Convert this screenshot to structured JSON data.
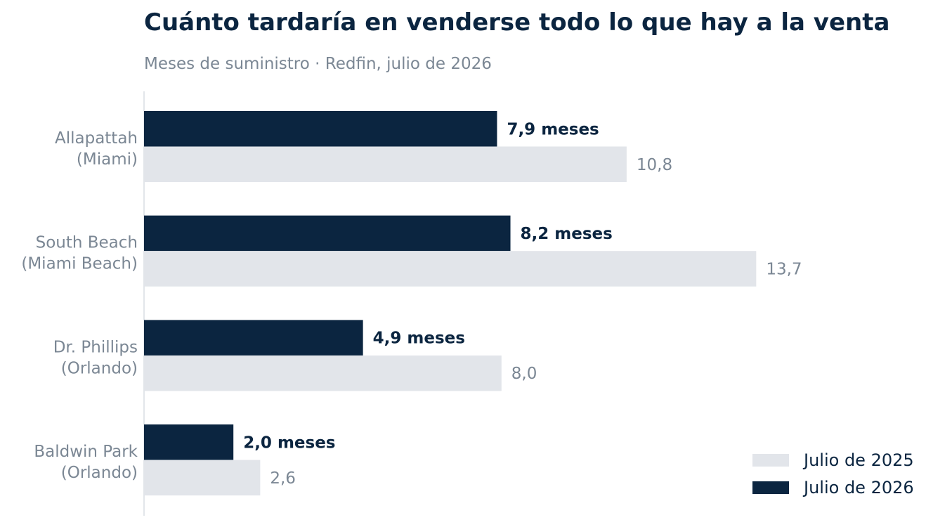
{
  "chart_data": {
    "type": "bar",
    "orientation": "horizontal",
    "title": "Cuánto tardaría en venderse todo lo que hay a la venta",
    "subtitle": "Meses de suministro · Redfin, julio de 2026",
    "categories": [
      [
        "Allapattah",
        "(Miami)"
      ],
      [
        "South Beach",
        "(Miami Beach)"
      ],
      [
        "Dr. Phillips",
        "(Orlando)"
      ],
      [
        "Baldwin Park",
        "(Orlando)"
      ]
    ],
    "series": [
      {
        "name": "Julio de 2026",
        "color": "#0b2540",
        "values": [
          7.9,
          8.2,
          4.9,
          2.0
        ],
        "labels": [
          "7,9 meses",
          "8,2 meses",
          "4,9 meses",
          "2,0 meses"
        ]
      },
      {
        "name": "Julio de 2025",
        "color": "#e2e5ea",
        "values": [
          10.8,
          13.7,
          8.0,
          2.6
        ],
        "labels": [
          "10,8",
          "13,7",
          "8,0",
          "2,6"
        ]
      }
    ],
    "xlim": [
      0,
      16.5
    ],
    "grid": false,
    "legend": {
      "placement": "bottom-right",
      "entries": [
        "Julio de 2025",
        "Julio de 2026"
      ]
    }
  }
}
